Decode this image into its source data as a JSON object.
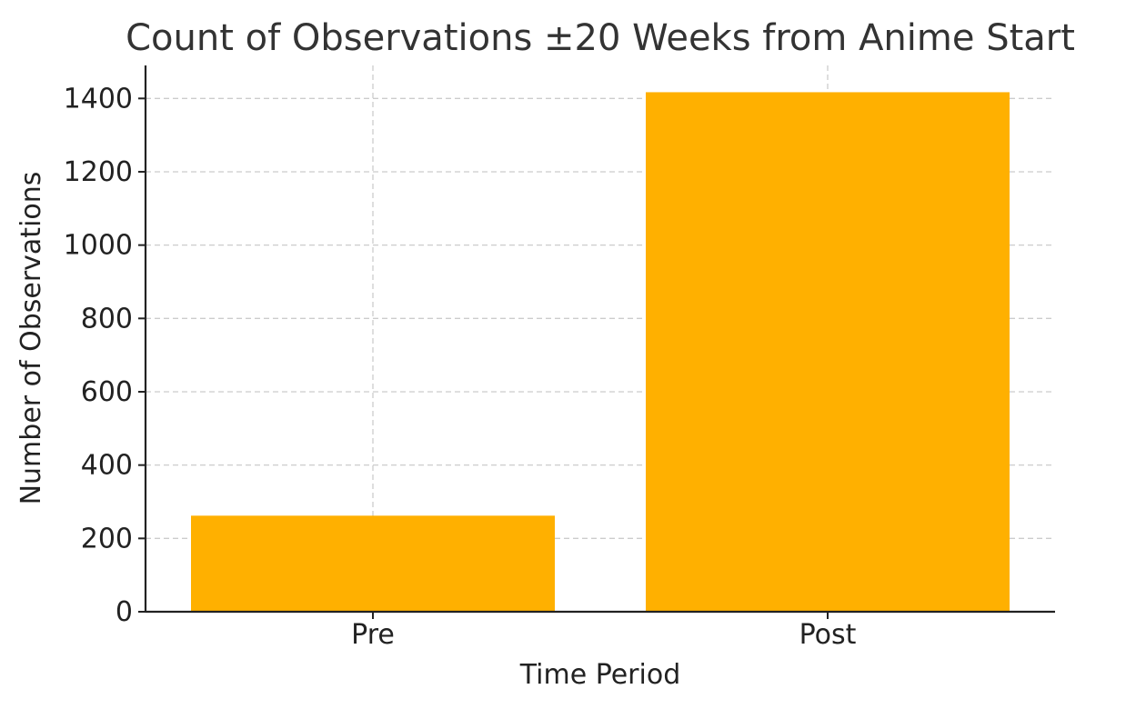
{
  "chart_data": {
    "type": "bar",
    "title": "Count of Observations ±20 Weeks from Anime Start",
    "xlabel": "Time Period",
    "ylabel": "Number of Observations",
    "categories": [
      "Pre",
      "Post"
    ],
    "values": [
      262,
      1417
    ],
    "ylim": [
      0,
      1490
    ],
    "yticks": [
      0,
      200,
      400,
      600,
      800,
      1000,
      1200,
      1400
    ],
    "bar_color": "#ffb000",
    "grid": true,
    "legend": false
  }
}
